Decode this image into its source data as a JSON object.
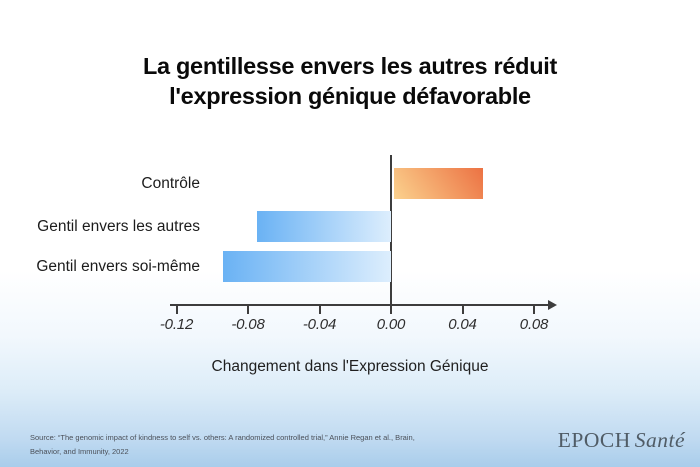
{
  "title": {
    "line1": "La gentillesse envers les autres réduit",
    "line2": "l'expression génique défavorable"
  },
  "chart_data": {
    "type": "bar",
    "orientation": "horizontal",
    "title": "La gentillesse envers les autres réduit l'expression génique défavorable",
    "xlabel": "Changement dans l'Expression Génique",
    "ylabel": "",
    "xlim": [
      -0.14,
      0.095
    ],
    "grid": false,
    "legend_position": "none",
    "categories": [
      "Contrôle",
      "Gentil envers les autres",
      "Gentil envers soi-même"
    ],
    "values": [
      0.05,
      -0.075,
      -0.094
    ],
    "bars": [
      {
        "label": "Contrôle",
        "value": 0.05,
        "color_from": "#fbd28e",
        "color_to": "#ec7243",
        "angle": "55deg"
      },
      {
        "label": "Gentil envers les autres",
        "value": -0.075,
        "color_from": "#6ab2f4",
        "color_to": "#ddeefd",
        "angle": "90deg"
      },
      {
        "label": "Gentil envers soi-même",
        "value": -0.094,
        "color_from": "#6ab2f4",
        "color_to": "#ddeefd",
        "angle": "90deg"
      }
    ],
    "xticks": [
      {
        "value": -0.12,
        "label": "-0.12"
      },
      {
        "value": -0.08,
        "label": "-0.08"
      },
      {
        "value": -0.04,
        "label": "-0.04"
      },
      {
        "value": 0,
        "label": "0.00"
      },
      {
        "value": 0.04,
        "label": "0.04"
      },
      {
        "value": 0.08,
        "label": "0.08"
      }
    ],
    "axis_color": "#3d3d3d"
  },
  "footer": {
    "source_line1": "Source: “The genomic impact of kindness to self vs. others: A randomized controlled trial,” Annie Regan et al., Brain,",
    "source_line2": "Behavior, and Immunity, 2022",
    "brand_name": "EPOCH",
    "brand_suffix": "Santé"
  },
  "colors": {
    "background_bottom": "#a9cdeb",
    "title_text": "#0a0a0a",
    "orange_from": "#fbd28e",
    "orange_to": "#ec7243",
    "blue_from": "#6ab2f4",
    "blue_to": "#ddeefd"
  }
}
